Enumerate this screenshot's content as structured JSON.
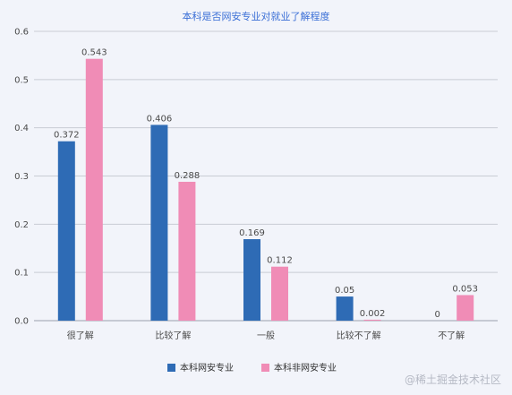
{
  "chart_data": {
    "type": "bar",
    "title": "本科是否网安专业对就业了解程度",
    "categories": [
      "很了解",
      "比较了解",
      "一般",
      "比较不了解",
      "不了解"
    ],
    "series": [
      {
        "name": "本科网安专业",
        "values": [
          0.372,
          0.406,
          0.169,
          0.05,
          0
        ],
        "labels": [
          "0.372",
          "0.406",
          "0.169",
          "0.05",
          "0"
        ]
      },
      {
        "name": "本科非网安专业",
        "values": [
          0.543,
          0.288,
          0.112,
          0.002,
          0.053
        ],
        "labels": [
          "0.543",
          "0.288",
          "0.112",
          "0.002",
          "0.053"
        ]
      }
    ],
    "ylim": [
      0,
      0.6
    ],
    "yticks": [
      "0.0",
      "0.1",
      "0.2",
      "0.3",
      "0.4",
      "0.5",
      "0.6"
    ],
    "ytick_values": [
      0,
      0.1,
      0.2,
      0.3,
      0.4,
      0.5,
      0.6
    ],
    "grid": true,
    "legend_position": "bottom",
    "colors": [
      "#2e6bb5",
      "#f08cb6"
    ],
    "xlabel": "",
    "ylabel": ""
  },
  "watermark": "@稀土掘金技术社区"
}
